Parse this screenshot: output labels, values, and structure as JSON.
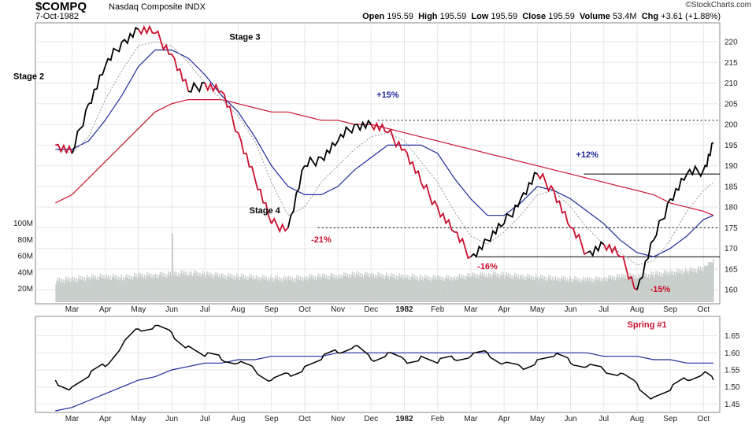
{
  "header": {
    "symbol": "$COMPQ",
    "index_name": "Nasdaq Composite",
    "index_type": "INDX",
    "date": "7-Oct-1982",
    "open_label": "Open",
    "open": "195.59",
    "high_label": "High",
    "high": "195.59",
    "low_label": "Low",
    "low": "195.59",
    "close_label": "Close",
    "close": "195.59",
    "volume_label": "Volume",
    "volume": "53.4M",
    "chg_label": "Chg",
    "chg": "+3.61 (+1.88%)",
    "brand": "©StockCharts.com"
  },
  "colors": {
    "up": "#000000",
    "down": "#c8102e",
    "ma_blue": "#1f2a9c",
    "ma_red": "#c8102e",
    "ma_dotted": "#999999",
    "volume": "#c8cfcb",
    "ratio": "#000000",
    "ratio_ma": "#1f2a9c",
    "grid": "#e6e6e6",
    "annot_red": "#c8102e",
    "annot_blue": "#1f2a9c"
  },
  "chart_data": [
    {
      "type": "line",
      "title": "$COMPQ Nasdaq Composite INDX",
      "x_months": [
        "Mar",
        "Apr",
        "May",
        "Jun",
        "Jul",
        "Aug",
        "Sep",
        "Oct",
        "Nov",
        "Dec",
        "1982",
        "Feb",
        "Mar",
        "Apr",
        "May",
        "Jun",
        "Jul",
        "Aug",
        "Sep",
        "Oct"
      ],
      "x": [
        0,
        0.5,
        1,
        1.5,
        2,
        2.5,
        3,
        3.5,
        4,
        4.5,
        5,
        5.5,
        6,
        6.5,
        7,
        7.5,
        8,
        8.5,
        9,
        9.5,
        10,
        10.5,
        11,
        11.5,
        12,
        12.5,
        13,
        13.5,
        14,
        14.5,
        15,
        15.5,
        16,
        16.5,
        17,
        17.5,
        18,
        18.5,
        19,
        19.5,
        19.8
      ],
      "ylim": [
        157,
        224
      ],
      "yticks": [
        160,
        165,
        170,
        175,
        180,
        185,
        190,
        195,
        200,
        205,
        210,
        215,
        220
      ],
      "series": [
        {
          "values": [
            195,
            193,
            205,
            214,
            220,
            223,
            222,
            217,
            208,
            210,
            208,
            198,
            187,
            176,
            175,
            190,
            192,
            196,
            200,
            200,
            198,
            194,
            186,
            180,
            174,
            168,
            172,
            176,
            182,
            188,
            184,
            175,
            169,
            171,
            168,
            160,
            172,
            182,
            188,
            189,
            195.59
          ]
        },
        {
          "values": [
            194,
            193,
            197,
            206,
            213,
            219,
            220,
            219,
            215,
            210,
            206,
            202,
            196,
            186,
            178,
            180,
            186,
            190,
            194,
            197,
            198,
            196,
            191,
            186,
            179,
            173,
            171,
            174,
            178,
            183,
            184,
            180,
            175,
            171,
            169,
            166,
            167,
            172,
            179,
            184,
            186
          ]
        },
        {
          "values": [
            194,
            194,
            196,
            201,
            207,
            214,
            218,
            218,
            216,
            212,
            207,
            203,
            197,
            190,
            185,
            183,
            183,
            185,
            189,
            192,
            195,
            195,
            195,
            193,
            187,
            182,
            178,
            178,
            181,
            185,
            184,
            182,
            179,
            176,
            172,
            169,
            168,
            170,
            173,
            177,
            178
          ]
        },
        {
          "values": [
            181,
            183,
            187,
            191,
            195,
            199,
            203,
            205,
            206,
            206,
            206,
            205,
            204,
            203,
            203,
            202,
            201,
            201,
            200,
            200,
            199,
            198,
            197,
            196,
            195,
            194,
            193,
            192,
            191,
            190,
            189,
            188,
            187,
            186,
            185,
            184,
            183,
            181,
            180,
            179,
            178
          ]
        }
      ],
      "levels": [
        201,
        175,
        168,
        188
      ],
      "volume": {
        "ylabels": [
          "100M",
          "80M",
          "60M",
          "40M",
          "20M"
        ],
        "yvals": [
          100,
          80,
          60,
          40,
          20
        ],
        "series": [
          {
            "values": [
              30,
              32,
              34,
              35,
              34,
              36,
              37,
              38,
              40,
              38,
              36,
              35,
              34,
              33,
              32,
              34,
              35,
              36,
              38,
              37,
              36,
              35,
              34,
              33,
              34,
              36,
              38,
              37,
              35,
              34,
              33,
              32,
              31,
              33,
              35,
              36,
              38,
              40,
              42,
              45,
              53.4
            ]
          }
        ],
        "spike": {
          "x": 3.5,
          "value": 88
        }
      },
      "annotations": [
        {
          "text": "Stage 2",
          "x": -0.8,
          "y": 211,
          "color": "#000000"
        },
        {
          "text": "Stage 3",
          "x": 5.7,
          "y": 220.5,
          "color": "#000000"
        },
        {
          "text": "Stage 4",
          "x": 6.3,
          "y": 178.5,
          "color": "#000000"
        },
        {
          "text": "+15%",
          "x": 10,
          "y": 206.5,
          "color": "#1f2a9c"
        },
        {
          "text": "-21%",
          "x": 8.0,
          "y": 171.5,
          "color": "#c8102e"
        },
        {
          "text": "-16%",
          "x": 13.0,
          "y": 165,
          "color": "#c8102e"
        },
        {
          "text": "+12%",
          "x": 16.0,
          "y": 192,
          "color": "#1f2a9c"
        },
        {
          "text": "-15%",
          "x": 18.2,
          "y": 159.5,
          "color": "#c8102e"
        }
      ]
    },
    {
      "type": "line",
      "title": "",
      "ylim": [
        1.43,
        1.7
      ],
      "yticks": [
        1.45,
        1.5,
        1.55,
        1.6,
        1.65
      ],
      "series": [
        {
          "values": [
            1.52,
            1.5,
            1.53,
            1.56,
            1.62,
            1.67,
            1.68,
            1.66,
            1.62,
            1.59,
            1.58,
            1.57,
            1.55,
            1.52,
            1.54,
            1.56,
            1.58,
            1.6,
            1.62,
            1.58,
            1.6,
            1.58,
            1.59,
            1.57,
            1.58,
            1.59,
            1.6,
            1.57,
            1.56,
            1.58,
            1.59,
            1.57,
            1.56,
            1.55,
            1.54,
            1.51,
            1.47,
            1.49,
            1.52,
            1.54,
            1.52
          ]
        },
        {
          "values": [
            1.43,
            1.44,
            1.46,
            1.48,
            1.5,
            1.52,
            1.53,
            1.55,
            1.56,
            1.57,
            1.57,
            1.58,
            1.58,
            1.59,
            1.59,
            1.59,
            1.59,
            1.6,
            1.6,
            1.6,
            1.6,
            1.6,
            1.6,
            1.6,
            1.6,
            1.6,
            1.6,
            1.6,
            1.6,
            1.6,
            1.6,
            1.6,
            1.6,
            1.59,
            1.59,
            1.59,
            1.58,
            1.58,
            1.57,
            1.57,
            1.57
          ]
        }
      ],
      "annotations": [
        {
          "text": "Spring #1",
          "x": 17.8,
          "y": 1.675,
          "color": "#c8102e"
        }
      ]
    }
  ]
}
